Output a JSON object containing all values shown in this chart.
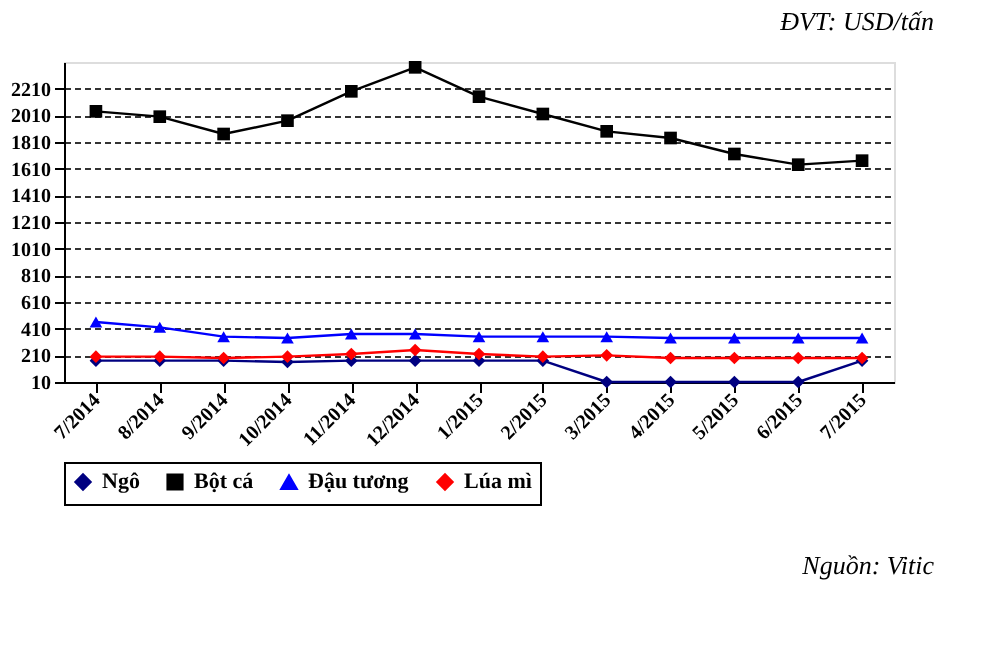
{
  "chart_data": {
    "type": "line",
    "categories": [
      "7/2014",
      "8/2014",
      "9/2014",
      "10/2014",
      "11/2014",
      "12/2014",
      "1/2015",
      "2/2015",
      "3/2015",
      "4/2015",
      "5/2015",
      "6/2015",
      "7/2015"
    ],
    "series": [
      {
        "name": "Ngô",
        "color": "#000080",
        "marker": "diamond",
        "values": [
          170,
          170,
          170,
          160,
          170,
          170,
          170,
          170,
          10,
          10,
          10,
          10,
          170
        ]
      },
      {
        "name": "Bột cá",
        "color": "#000000",
        "marker": "square",
        "values": [
          2040,
          2000,
          1870,
          1970,
          2190,
          2370,
          2150,
          2020,
          1890,
          1840,
          1720,
          1640,
          1670
        ]
      },
      {
        "name": "Đậu tương",
        "color": "#0000ff",
        "marker": "triangle",
        "values": [
          460,
          420,
          350,
          340,
          370,
          370,
          350,
          350,
          350,
          340,
          340,
          340,
          340
        ]
      },
      {
        "name": "Lúa mì",
        "color": "#ff0000",
        "marker": "diamond",
        "values": [
          200,
          200,
          190,
          200,
          220,
          250,
          220,
          200,
          210,
          190,
          190,
          190,
          190
        ]
      }
    ],
    "ylim": [
      10,
      2410
    ],
    "yticks": [
      10,
      210,
      410,
      610,
      810,
      1010,
      1210,
      1410,
      1610,
      1810,
      2010,
      2210
    ],
    "grid": "y",
    "legend": "bottom",
    "annotations": [
      "ĐVT: USD/tấn",
      "Nguồn: Vitic"
    ]
  }
}
